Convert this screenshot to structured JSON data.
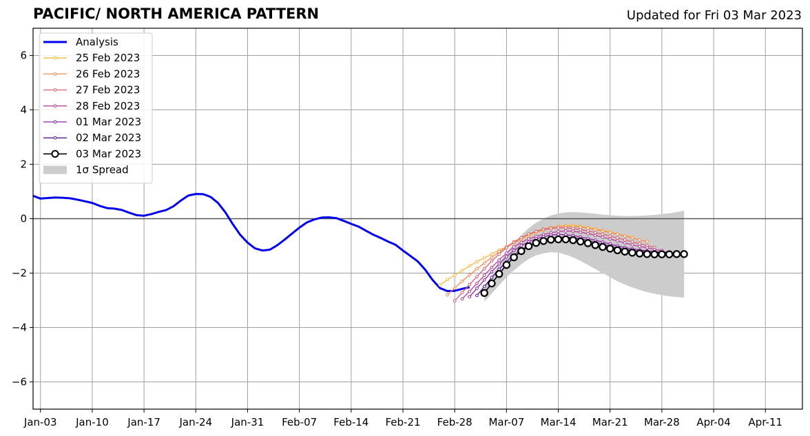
{
  "header": {
    "title": "PACIFIC/ NORTH AMERICA PATTERN",
    "updated": "Updated for Fri 03 Mar 2023"
  },
  "chart_data": {
    "type": "line",
    "title": "PACIFIC/ NORTH AMERICA PATTERN",
    "subtitle": "Updated for Fri 03 Mar 2023",
    "xlabel": "",
    "ylabel": "",
    "xlim": [
      "2023-01-02",
      "2023-04-16"
    ],
    "ylim": [
      -7,
      7
    ],
    "grid": true,
    "legend_position": "top-left",
    "x_ticks": [
      "Jan-03",
      "Jan-10",
      "Jan-17",
      "Jan-24",
      "Jan-31",
      "Feb-07",
      "Feb-14",
      "Feb-21",
      "Feb-28",
      "Mar-07",
      "Mar-14",
      "Mar-21",
      "Mar-28",
      "Apr-04",
      "Apr-11"
    ],
    "x_tick_dates": [
      "2023-01-03",
      "2023-01-10",
      "2023-01-17",
      "2023-01-24",
      "2023-01-31",
      "2023-02-07",
      "2023-02-14",
      "2023-02-21",
      "2023-02-28",
      "2023-03-07",
      "2023-03-14",
      "2023-03-21",
      "2023-03-28",
      "2023-04-04",
      "2023-04-11"
    ],
    "y_ticks": [
      6,
      4,
      2,
      0,
      -2,
      -4,
      -6
    ],
    "y_tick_labels": [
      "6",
      "4",
      "2",
      "0",
      "−2",
      "−4",
      "−6"
    ],
    "analysis": {
      "name": "Analysis",
      "color": "#0000ee",
      "start": "2023-01-02",
      "values": [
        0.84,
        0.74,
        0.76,
        0.78,
        0.77,
        0.75,
        0.7,
        0.64,
        0.58,
        0.47,
        0.39,
        0.37,
        0.32,
        0.22,
        0.13,
        0.11,
        0.17,
        0.25,
        0.32,
        0.46,
        0.67,
        0.85,
        0.91,
        0.9,
        0.8,
        0.58,
        0.23,
        -0.2,
        -0.59,
        -0.88,
        -1.09,
        -1.17,
        -1.14,
        -0.98,
        -0.77,
        -0.55,
        -0.33,
        -0.14,
        -0.03,
        0.04,
        0.05,
        0.02,
        -0.08,
        -0.19,
        -0.29,
        -0.44,
        -0.59,
        -0.71,
        -0.84,
        -0.96,
        -1.17,
        -1.37,
        -1.57,
        -1.87,
        -2.25,
        -2.55,
        -2.66,
        -2.65,
        -2.58,
        -2.52
      ]
    },
    "forecasts": [
      {
        "name": "25 Feb 2023",
        "color": "#f6b93b",
        "start": "2023-02-26",
        "values": [
          -2.44,
          -2.24,
          -2.08,
          -1.91,
          -1.74,
          -1.58,
          -1.44,
          -1.29,
          -1.16,
          -1.03,
          -0.89,
          -0.75,
          -0.62,
          -0.51,
          -0.42,
          -0.34,
          -0.28,
          -0.25,
          -0.25,
          -0.28,
          -0.32,
          -0.37,
          -0.43,
          -0.49,
          -0.56,
          -0.63,
          -0.68
        ]
      },
      {
        "name": "26 Feb 2023",
        "color": "#f28c4f",
        "start": "2023-02-27",
        "values": [
          -2.8,
          -2.55,
          -2.3,
          -2.07,
          -1.84,
          -1.63,
          -1.42,
          -1.22,
          -1.03,
          -0.85,
          -0.7,
          -0.57,
          -0.46,
          -0.38,
          -0.32,
          -0.29,
          -0.28,
          -0.29,
          -0.31,
          -0.35,
          -0.4,
          -0.45,
          -0.51,
          -0.57,
          -0.64,
          -0.71,
          -0.78,
          -0.84
        ]
      },
      {
        "name": "27 Feb 2023",
        "color": "#dc5f73",
        "start": "2023-02-28",
        "values": [
          -3.02,
          -2.72,
          -2.42,
          -2.13,
          -1.84,
          -1.56,
          -1.3,
          -1.07,
          -0.87,
          -0.7,
          -0.57,
          -0.47,
          -0.4,
          -0.36,
          -0.34,
          -0.34,
          -0.36,
          -0.4,
          -0.45,
          -0.51,
          -0.57,
          -0.64,
          -0.71,
          -0.78,
          -0.85,
          -0.92,
          -0.99,
          -1.05
        ]
      },
      {
        "name": "28 Feb 2023",
        "color": "#b8409a",
        "start": "2023-03-01",
        "values": [
          -2.95,
          -2.67,
          -2.38,
          -2.08,
          -1.79,
          -1.52,
          -1.26,
          -1.04,
          -0.87,
          -0.74,
          -0.65,
          -0.58,
          -0.52,
          -0.47,
          -0.45,
          -0.46,
          -0.5,
          -0.55,
          -0.61,
          -0.68,
          -0.75,
          -0.82,
          -0.89,
          -0.96,
          -1.02,
          -1.07,
          -1.13,
          -1.17
        ]
      },
      {
        "name": "01 Mar 2023",
        "color": "#8d22a8",
        "start": "2023-03-02",
        "values": [
          -2.87,
          -2.56,
          -2.25,
          -1.95,
          -1.66,
          -1.4,
          -1.17,
          -0.99,
          -0.85,
          -0.74,
          -0.66,
          -0.6,
          -0.58,
          -0.59,
          -0.62,
          -0.67,
          -0.73,
          -0.79,
          -0.86,
          -0.93,
          -1.0,
          -1.06,
          -1.11,
          -1.15,
          -1.18,
          -1.21,
          -1.22,
          -1.23
        ]
      },
      {
        "name": "02 Mar 2023",
        "color": "#5d1293",
        "start": "2023-03-03",
        "values": [
          -2.82,
          -2.49,
          -2.16,
          -1.86,
          -1.58,
          -1.34,
          -1.14,
          -0.99,
          -0.87,
          -0.78,
          -0.72,
          -0.69,
          -0.68,
          -0.7,
          -0.74,
          -0.8,
          -0.87,
          -0.94,
          -1.01,
          -1.07,
          -1.12,
          -1.16,
          -1.19,
          -1.22,
          -1.23,
          -1.24,
          -1.25,
          -1.25
        ]
      },
      {
        "name": "03 Mar 2023",
        "color": "#000000",
        "start": "2023-03-04",
        "values": [
          -2.73,
          -2.38,
          -2.03,
          -1.7,
          -1.42,
          -1.19,
          -1.01,
          -0.89,
          -0.82,
          -0.77,
          -0.76,
          -0.76,
          -0.79,
          -0.84,
          -0.9,
          -0.97,
          -1.04,
          -1.1,
          -1.16,
          -1.21,
          -1.25,
          -1.28,
          -1.3,
          -1.31,
          -1.31,
          -1.31,
          -1.3,
          -1.3
        ]
      }
    ],
    "spread": {
      "name": "1σ Spread",
      "color": "#cccccc",
      "start": "2023-03-04",
      "upper": [
        -2.55,
        -2.1,
        -1.65,
        -1.25,
        -0.9,
        -0.6,
        -0.35,
        -0.15,
        0.0,
        0.12,
        0.19,
        0.23,
        0.24,
        0.23,
        0.21,
        0.18,
        0.15,
        0.13,
        0.11,
        0.1,
        0.1,
        0.11,
        0.12,
        0.14,
        0.17,
        0.2,
        0.24,
        0.29
      ],
      "lower": [
        -3.05,
        -2.75,
        -2.45,
        -2.15,
        -1.9,
        -1.67,
        -1.48,
        -1.35,
        -1.27,
        -1.23,
        -1.25,
        -1.32,
        -1.42,
        -1.55,
        -1.7,
        -1.85,
        -2.0,
        -2.15,
        -2.3,
        -2.42,
        -2.53,
        -2.62,
        -2.7,
        -2.76,
        -2.81,
        -2.85,
        -2.88,
        -2.9
      ]
    }
  }
}
